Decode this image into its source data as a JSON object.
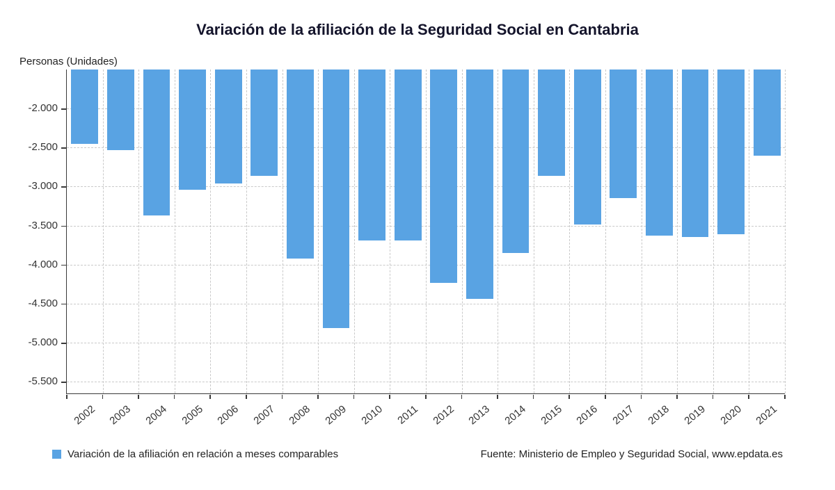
{
  "title": "Variación de la afiliación de la Seguridad Social en Cantabria",
  "axis_unit_label": "Personas (Unidades)",
  "legend": {
    "label": "Variación de la afiliación en relación a meses comparables"
  },
  "source": "Fuente: Ministerio de Empleo y Seguridad Social, www.epdata.es",
  "colors": {
    "bar": "#59a3e3",
    "axis": "#3a3a3a",
    "grid": "#c9c9c9",
    "title": "#14142b",
    "text": "#333333"
  },
  "chart_data": {
    "type": "bar",
    "title": "Variación de la afiliación de la Seguridad Social en Cantabria",
    "xlabel": "",
    "ylabel": "Personas (Unidades)",
    "categories": [
      "2002",
      "2003",
      "2004",
      "2005",
      "2006",
      "2007",
      "2008",
      "2009",
      "2010",
      "2011",
      "2012",
      "2013",
      "2014",
      "2015",
      "2016",
      "2017",
      "2018",
      "2019",
      "2020",
      "2021"
    ],
    "values": [
      -2450,
      -2530,
      -3370,
      -3040,
      -2960,
      -2860,
      -3920,
      -4810,
      -3690,
      -3690,
      -4230,
      -4440,
      -3850,
      -2860,
      -3490,
      -3150,
      -3630,
      -3650,
      -3610,
      -2600
    ],
    "series_name": "Variación de la afiliación en relación a meses comparables",
    "ylim": [
      -5650,
      -1500
    ],
    "yticks": [
      -2000,
      -2500,
      -3000,
      -3500,
      -4000,
      -4500,
      -5000,
      -5500
    ],
    "ytick_labels": [
      "-2.000",
      "-2.500",
      "-3.000",
      "-3.500",
      "-4.000",
      "-4.500",
      "-5.000",
      "-5.500"
    ],
    "grid": "dashed",
    "legend_position": "bottom",
    "bar_color": "#59a3e3"
  }
}
